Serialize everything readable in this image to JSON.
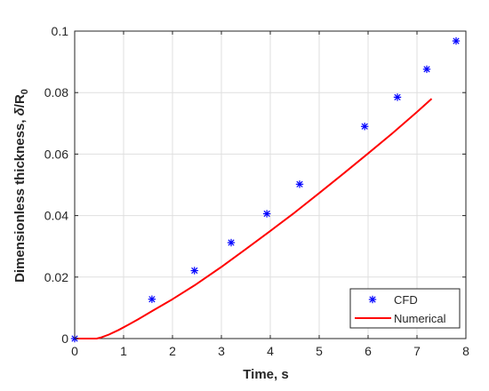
{
  "chart_data": {
    "type": "line",
    "xlabel": "Time, s",
    "ylabel_main": "Dimensionless thickness, ",
    "ylabel_delta": "δ",
    "ylabel_slash": "/R",
    "ylabel_sub": "0",
    "xlim": [
      0,
      8
    ],
    "ylim": [
      0,
      0.1
    ],
    "x_ticks": [
      "0",
      "1",
      "2",
      "3",
      "4",
      "5",
      "6",
      "7",
      "8"
    ],
    "y_ticks": [
      "0",
      "0.02",
      "0.04",
      "0.06",
      "0.08",
      "0.1"
    ],
    "grid": true,
    "legend_position": "bottom-right",
    "series": [
      {
        "name": "CFD",
        "kind": "scatter",
        "marker": "asterisk",
        "color": "#0000ff",
        "x": [
          0.0,
          1.58,
          2.45,
          3.2,
          3.93,
          4.6,
          5.93,
          6.6,
          7.2,
          7.8
        ],
        "y": [
          0.0,
          0.0128,
          0.0221,
          0.0312,
          0.0406,
          0.0502,
          0.069,
          0.0785,
          0.0876,
          0.0968
        ]
      },
      {
        "name": "Numerical",
        "kind": "line",
        "color": "#ff0000",
        "x": [
          0.0,
          0.45,
          0.55,
          0.7,
          0.9,
          1.1,
          1.3,
          1.6,
          2.0,
          2.45,
          3.0,
          3.5,
          4.0,
          4.5,
          5.0,
          5.5,
          6.0,
          6.5,
          7.0,
          7.3
        ],
        "y": [
          0.0,
          0.0,
          0.0004,
          0.0013,
          0.0028,
          0.0045,
          0.0063,
          0.0091,
          0.0128,
          0.0173,
          0.0233,
          0.0291,
          0.035,
          0.041,
          0.0473,
          0.0537,
          0.0602,
          0.0668,
          0.0737,
          0.078
        ]
      }
    ]
  }
}
